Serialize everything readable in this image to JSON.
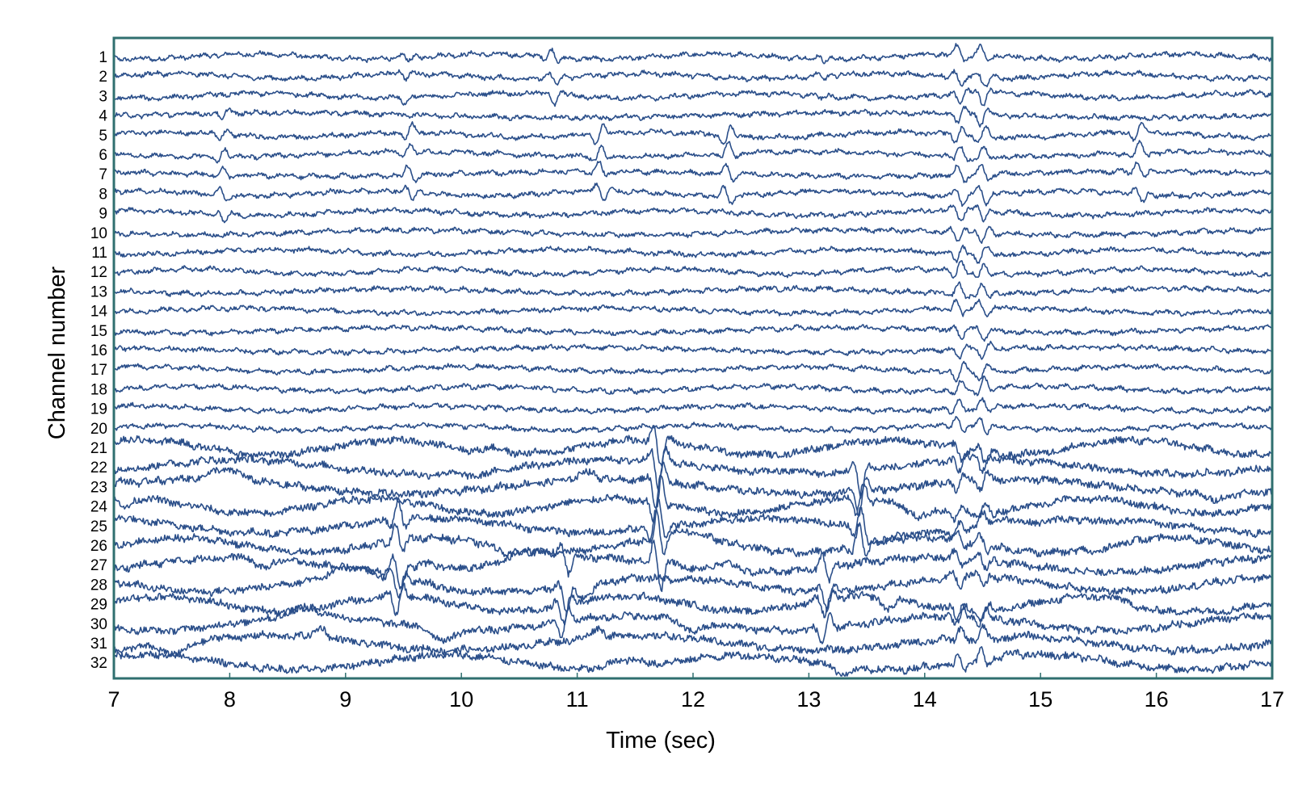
{
  "chart_data": {
    "type": "line",
    "title": "",
    "xlabel": "Time (sec)",
    "ylabel": "Channel number",
    "xlim": [
      7,
      17
    ],
    "x_ticks": [
      "7",
      "8",
      "9",
      "10",
      "11",
      "12",
      "13",
      "14",
      "15",
      "16",
      "17"
    ],
    "y_ticks": [
      "1",
      "2",
      "3",
      "4",
      "5",
      "6",
      "7",
      "8",
      "9",
      "10",
      "11",
      "12",
      "13",
      "14",
      "15",
      "16",
      "17",
      "18",
      "19",
      "20",
      "21",
      "22",
      "23",
      "24",
      "25",
      "26",
      "27",
      "28",
      "29",
      "30",
      "31",
      "32"
    ],
    "channel_count": 32,
    "grid": false,
    "legend": "none",
    "trace_color": "#2b4f8a",
    "axis_color": "#2f6f6f",
    "events": [
      {
        "t": 7.95,
        "channels": "4-9",
        "amp": 0.7
      },
      {
        "t": 9.5,
        "channels": "1-3",
        "amp": 0.5
      },
      {
        "t": 9.55,
        "channels": "5-8",
        "amp": 0.8
      },
      {
        "t": 10.8,
        "channels": "1-3",
        "amp": 0.8
      },
      {
        "t": 11.2,
        "channels": "5-8",
        "amp": 1.0
      },
      {
        "t": 12.3,
        "channels": "5-8",
        "amp": 0.9
      },
      {
        "t": 13.1,
        "channels": "1-3",
        "amp": 0.4
      },
      {
        "t": 13.45,
        "channels": "22-26",
        "amp": 2.0
      },
      {
        "t": 14.3,
        "channels": "1-32",
        "amp": 0.9
      },
      {
        "t": 14.5,
        "channels": "1-32",
        "amp": 0.9
      },
      {
        "t": 15.85,
        "channels": "5-8",
        "amp": 0.9
      },
      {
        "t": 11.7,
        "channels": "21-27",
        "amp": 2.6
      },
      {
        "t": 10.9,
        "channels": "27-30",
        "amp": 1.8
      },
      {
        "t": 9.45,
        "channels": "25-29",
        "amp": 1.8
      },
      {
        "t": 13.15,
        "channels": "27-30",
        "amp": 1.6
      }
    ]
  }
}
